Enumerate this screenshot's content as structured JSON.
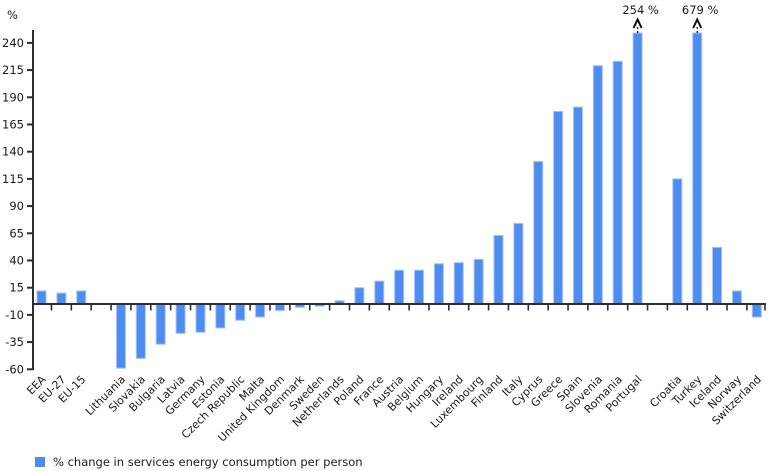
{
  "chart_data": {
    "type": "bar",
    "title": "",
    "unit_label": "%",
    "xlabel": "",
    "ylabel": "%",
    "ylim": [
      -60,
      240
    ],
    "yticks": [
      -60,
      -35,
      -10,
      15,
      40,
      65,
      90,
      115,
      140,
      165,
      190,
      215,
      240
    ],
    "grid": false,
    "bar_color": "#4e8cf0",
    "bar_edge_color": "#a3c3f6",
    "axis_color": "#2e2e2e",
    "text_color": "#1a1a1a",
    "legend": {
      "label": "% change in services energy consumption per person",
      "position": "bottom-left",
      "color": "#4e8cf0"
    },
    "groups": [
      {
        "name": "aggregates",
        "items": [
          {
            "label": "EEA",
            "value": 12
          },
          {
            "label": "EU-27",
            "value": 10
          },
          {
            "label": "EU-15",
            "value": 12
          }
        ]
      },
      {
        "name": "eu-member-states",
        "items": [
          {
            "label": "Lithuania",
            "value": -59
          },
          {
            "label": "Slovakia",
            "value": -50
          },
          {
            "label": "Bulgaria",
            "value": -37
          },
          {
            "label": "Latvia",
            "value": -27
          },
          {
            "label": "Germany",
            "value": -26
          },
          {
            "label": "Estonia",
            "value": -22
          },
          {
            "label": "Czech Republic",
            "value": -15
          },
          {
            "label": "Malta",
            "value": -12
          },
          {
            "label": "United Kingdom",
            "value": -6
          },
          {
            "label": "Denmark",
            "value": -3
          },
          {
            "label": "Sweden",
            "value": -2
          },
          {
            "label": "Netherlands",
            "value": 3
          },
          {
            "label": "Poland",
            "value": 15
          },
          {
            "label": "France",
            "value": 21
          },
          {
            "label": "Austria",
            "value": 31
          },
          {
            "label": "Belgium",
            "value": 31
          },
          {
            "label": "Hungary",
            "value": 37
          },
          {
            "label": "Ireland",
            "value": 38
          },
          {
            "label": "Luxembourg",
            "value": 41
          },
          {
            "label": "Finland",
            "value": 63
          },
          {
            "label": "Italy",
            "value": 74
          },
          {
            "label": "Cyprus",
            "value": 131
          },
          {
            "label": "Greece",
            "value": 177
          },
          {
            "label": "Spain",
            "value": 181
          },
          {
            "label": "Slovenia",
            "value": 219
          },
          {
            "label": "Romania",
            "value": 223
          },
          {
            "label": "Portugal",
            "value": 254,
            "clipped": true,
            "annotation": "254 %"
          }
        ]
      },
      {
        "name": "non-eu-countries",
        "items": [
          {
            "label": "Croatia",
            "value": 115
          },
          {
            "label": "Turkey",
            "value": 679,
            "clipped": true,
            "annotation": "679 %"
          },
          {
            "label": "Iceland",
            "value": 52
          },
          {
            "label": "Norway",
            "value": 12
          },
          {
            "label": "Switzerland",
            "value": -12
          }
        ]
      }
    ]
  }
}
